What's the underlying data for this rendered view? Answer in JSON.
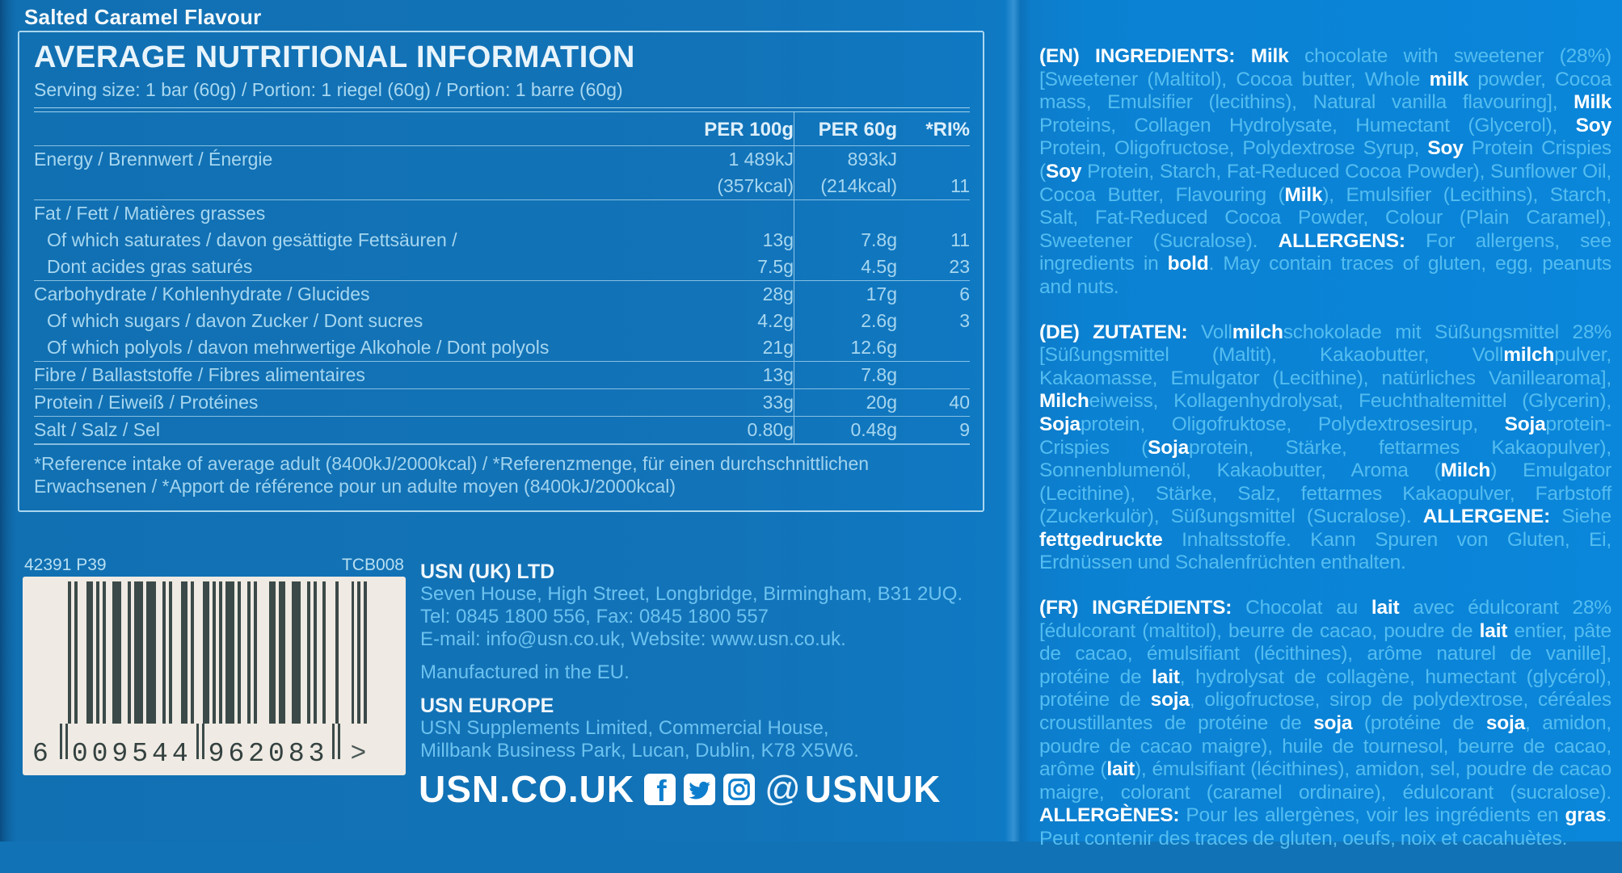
{
  "flavour": "Salted Caramel Flavour",
  "nutrition": {
    "title": "AVERAGE NUTRITIONAL INFORMATION",
    "serving": "Serving size: 1 bar (60g) / Portion: 1 riegel (60g) / Portion: 1 barre (60g)",
    "columns": {
      "per100": "PER 100g",
      "per60": "PER 60g",
      "ri": "*RI%"
    },
    "lines": [
      {
        "label": "Energy / Brennwert / Énergie",
        "v100": "1 489kJ",
        "v60": "893kJ",
        "ri": ""
      },
      {
        "label": "",
        "v100": "(357kcal)",
        "v60": "(214kcal)",
        "ri": "11"
      },
      {
        "sep": 1
      },
      {
        "label": "Fat / Fett / Matières grasses",
        "v100": "",
        "v60": "",
        "ri": ""
      },
      {
        "label": "Of which saturates / davon gesättigte Fettsäuren /",
        "indent": 1,
        "v100": "13g",
        "v60": "7.8g",
        "ri": "11"
      },
      {
        "label": "Dont acides gras saturés",
        "indent": 1,
        "v100": "7.5g",
        "v60": "4.5g",
        "ri": "23"
      },
      {
        "sep": 1
      },
      {
        "label": "Carbohydrate / Kohlenhydrate / Glucides",
        "v100": "28g",
        "v60": "17g",
        "ri": "6"
      },
      {
        "label": "Of which sugars / davon Zucker / Dont sucres",
        "indent": 1,
        "v100": "4.2g",
        "v60": "2.6g",
        "ri": "3"
      },
      {
        "label": "Of which polyols / davon mehrwertige Alkohole / Dont polyols",
        "indent": 1,
        "v100": "21g",
        "v60": "12.6g",
        "ri": ""
      },
      {
        "sep": 1
      },
      {
        "label": "Fibre / Ballaststoffe / Fibres alimentaires",
        "v100": "13g",
        "v60": "7.8g",
        "ri": ""
      },
      {
        "sep": 1
      },
      {
        "label": "Protein / Eiweiß / Protéines",
        "v100": "33g",
        "v60": "20g",
        "ri": "40"
      },
      {
        "sep": 1
      },
      {
        "label": "Salt / Salz / Sel",
        "v100": "0.80g",
        "v60": "0.48g",
        "ri": "9"
      }
    ],
    "footnote": "*Reference intake of average adult (8400kJ/2000kcal) / *Referenzmenge, für einen durchschnittlichen Erwachsenen / *Apport de référence pour un adulte moyen (8400kJ/2000kcal)"
  },
  "codes": {
    "left": "42391 P39",
    "right": "TCB008"
  },
  "barcode": {
    "number": "6009544962083",
    "first": "6",
    "group1": "009544",
    "group2": "962083",
    "arrow": ">"
  },
  "company_uk": {
    "name": "USN (UK) LTD",
    "address": "Seven House, High Street, Longbridge, Birmingham, B31 2UQ.",
    "tel": "Tel: 0845 1800 556, Fax: 0845 1800 557",
    "email": "E-mail: info@usn.co.uk, Website: www.usn.co.uk.",
    "made": "Manufactured in the EU."
  },
  "company_eu": {
    "name": "USN EUROPE",
    "line1": "USN Supplements Limited, Commercial House,",
    "line2": "Millbank Business Park, Lucan, Dublin, K78 X5W6."
  },
  "footer": {
    "site": "USN.CO.UK",
    "at": "@",
    "handle": "USNUK",
    "icon_color": "#0d7ecd"
  },
  "ingredients": {
    "en": {
      "segments": [
        {
          "b": 1,
          "t": "(EN) INGREDIENTS: "
        },
        {
          "b": 1,
          "t": "Milk"
        },
        {
          "t": " chocolate with sweetener (28%) [Sweetener (Maltitol), Cocoa butter, Whole "
        },
        {
          "b": 1,
          "t": "milk"
        },
        {
          "t": " powder, Cocoa mass, Emulsifier (lecithins), Natural vanilla flavouring], "
        },
        {
          "b": 1,
          "t": "Milk"
        },
        {
          "t": " Proteins, Collagen Hydrolysate, Humectant (Glycerol), "
        },
        {
          "b": 1,
          "t": "Soy"
        },
        {
          "t": " Protein, Oligofructose, Polydextrose Syrup, "
        },
        {
          "b": 1,
          "t": "Soy"
        },
        {
          "t": " Protein Crispies ("
        },
        {
          "b": 1,
          "t": "Soy"
        },
        {
          "t": " Protein, Starch, Fat-Reduced Cocoa Powder), Sunflower Oil, Cocoa Butter, Flavouring ("
        },
        {
          "b": 1,
          "t": "Milk"
        },
        {
          "t": "), Emulsifier (Lecithins), Starch, Salt, Fat-Reduced Cocoa Powder, Colour (Plain Caramel), Sweetener (Sucralose). "
        },
        {
          "b": 1,
          "t": "ALLERGENS:"
        },
        {
          "t": " For allergens, see ingredients in "
        },
        {
          "b": 1,
          "t": "bold"
        },
        {
          "t": ". May contain traces of gluten, egg, peanuts and nuts."
        }
      ]
    },
    "de": {
      "segments": [
        {
          "b": 1,
          "t": "(DE) ZUTATEN: "
        },
        {
          "t": "Voll"
        },
        {
          "b": 1,
          "t": "milch"
        },
        {
          "t": "schokolade mit Süßungsmittel 28% [Süßungsmittel (Maltit), Kakaobutter, Voll"
        },
        {
          "b": 1,
          "t": "milch"
        },
        {
          "t": "pulver, Kakaomasse, Emulgator (Lecithine), natürliches Vanillearoma], "
        },
        {
          "b": 1,
          "t": "Milch"
        },
        {
          "t": "eiweiss, Kollagenhydrolysat, Feuchthaltemittel (Glycerin), "
        },
        {
          "b": 1,
          "t": "Soja"
        },
        {
          "t": "protein, Oligofruktose, Polydextrosesirup, "
        },
        {
          "b": 1,
          "t": "Soja"
        },
        {
          "t": "protein-Crispies ("
        },
        {
          "b": 1,
          "t": "Soja"
        },
        {
          "t": "protein, Stärke, fettarmes Kakaopulver), Sonnenblumenöl, Kakaobutter, Aroma ("
        },
        {
          "b": 1,
          "t": "Milch"
        },
        {
          "t": ") Emulgator (Lecithine), Stärke, Salz, fettarmes Kakaopulver, Farbstoff (Zuckerkulör), Süßungsmittel (Sucralose). "
        },
        {
          "b": 1,
          "t": "ALLERGENE:"
        },
        {
          "t": " Siehe "
        },
        {
          "b": 1,
          "t": "fettgedruckte"
        },
        {
          "t": " Inhaltsstoffe. Kann Spuren von Gluten, Ei, Erdnüssen und Schalenfrüchten enthalten."
        }
      ]
    },
    "fr": {
      "segments": [
        {
          "b": 1,
          "t": "(FR) INGRÉDIENTS: "
        },
        {
          "t": "Chocolat au "
        },
        {
          "b": 1,
          "t": "lait"
        },
        {
          "t": " avec édulcorant 28% [édulcorant (maltitol), beurre de cacao, poudre de "
        },
        {
          "b": 1,
          "t": "lait"
        },
        {
          "t": " entier, pâte de cacao, émulsifiant (lécithines), arôme naturel de vanille], protéine de "
        },
        {
          "b": 1,
          "t": "lait"
        },
        {
          "t": ", hydrolysat de collagène, humectant (glycérol), protéine de "
        },
        {
          "b": 1,
          "t": "soja"
        },
        {
          "t": ", oligofructose, sirop de polydextrose, céréales croustillantes de protéine de "
        },
        {
          "b": 1,
          "t": "soja"
        },
        {
          "t": " (protéine de "
        },
        {
          "b": 1,
          "t": "soja"
        },
        {
          "t": ", amidon, poudre de cacao maigre), huile de tournesol, beurre de cacao, arôme ("
        },
        {
          "b": 1,
          "t": "lait"
        },
        {
          "t": "), émulsifiant (lécithines), amidon, sel, poudre de cacao maigre, colorant (caramel ordinaire), édulcorant (sucralose). "
        },
        {
          "b": 1,
          "t": "ALLERGÈNES:"
        },
        {
          "t": " Pour les allergènes, voir les ingrédients en "
        },
        {
          "b": 1,
          "t": "gras"
        },
        {
          "t": ". Peut contenir des traces de gluten, oeufs, noix et cacahuètes."
        }
      ]
    }
  }
}
